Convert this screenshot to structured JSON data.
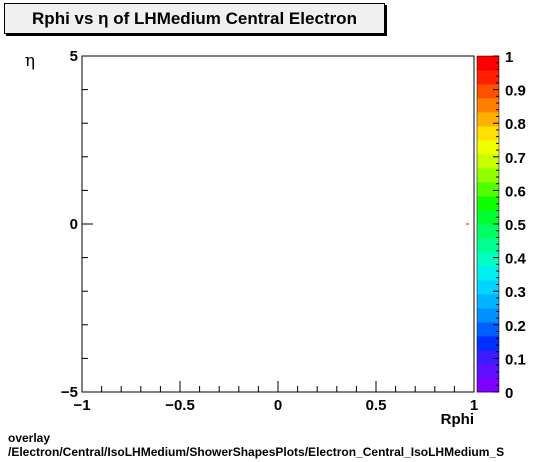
{
  "chart_data": {
    "type": "heatmap",
    "title": "Rphi vs η of LHMedium Central  Electron",
    "xlabel": "Rphi",
    "ylabel": "η",
    "xlim": [
      -1,
      1
    ],
    "ylim": [
      -5,
      5
    ],
    "x_ticks": [
      {
        "value": -1,
        "label": "−1"
      },
      {
        "value": -0.5,
        "label": "−0.5"
      },
      {
        "value": 0,
        "label": "0"
      },
      {
        "value": 0.5,
        "label": "0.5"
      },
      {
        "value": 1,
        "label": "1"
      }
    ],
    "y_ticks": [
      {
        "value": -5,
        "label": "−5"
      },
      {
        "value": 0,
        "label": "0"
      },
      {
        "value": 5,
        "label": "5"
      }
    ],
    "colorbar": {
      "range": [
        0,
        1
      ],
      "ticks": [
        "0",
        "0.1",
        "0.2",
        "0.3",
        "0.4",
        "0.5",
        "0.6",
        "0.7",
        "0.8",
        "0.9",
        "1"
      ],
      "colors": [
        "#7f00ff",
        "#6010ff",
        "#3c1cff",
        "#0030ff",
        "#0060ff",
        "#0090ff",
        "#00b4ff",
        "#00d4ff",
        "#00f0f0",
        "#00ffc0",
        "#00ff90",
        "#00ff60",
        "#00ff30",
        "#10ff00",
        "#50ff00",
        "#90ff00",
        "#c8ff00",
        "#f0ff00",
        "#ffe000",
        "#ffb000",
        "#ff8000",
        "#ff5000",
        "#ff2000",
        "#ff0000"
      ]
    },
    "points": [
      {
        "x": 0.97,
        "y": 0.0,
        "value": 1
      }
    ],
    "grid": false,
    "legend": "none"
  },
  "footer": {
    "line1": "overlay",
    "line2": "/Electron/Central/IsoLHMedium/ShowerShapesPlots/Electron_Central_IsoLHMedium_S"
  }
}
